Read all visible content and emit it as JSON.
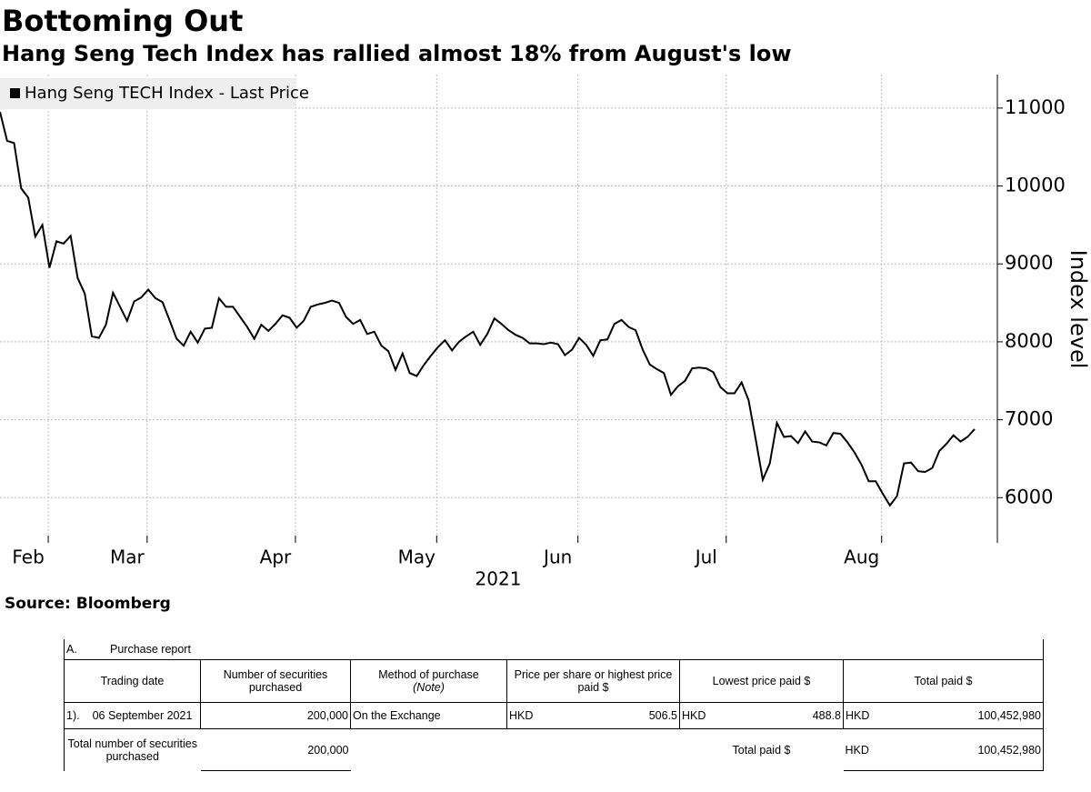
{
  "chart_data": {
    "type": "line",
    "title": "Bottoming Out",
    "subtitle": "Hang Seng Tech Index has rallied almost 18% from August's low",
    "x_label": "2021",
    "y_label": "Index level",
    "source": "Source: Bloomberg",
    "categories": [
      null,
      null,
      null,
      null,
      "Feb",
      null,
      null,
      null,
      null,
      null,
      null,
      null,
      null,
      null,
      null,
      null,
      null,
      null,
      "Mar",
      null,
      null,
      null,
      null,
      null,
      null,
      null,
      null,
      null,
      null,
      null,
      null,
      null,
      null,
      null,
      null,
      null,
      null,
      null,
      null,
      "Apr",
      null,
      null,
      null,
      null,
      null,
      null,
      null,
      null,
      null,
      null,
      null,
      null,
      null,
      null,
      null,
      null,
      null,
      null,
      null,
      "May",
      null,
      null,
      null,
      null,
      null,
      null,
      null,
      null,
      null,
      null,
      null,
      null,
      null,
      null,
      null,
      null,
      null,
      null,
      null,
      "Jun",
      null,
      null,
      null,
      null,
      null,
      null,
      null,
      null,
      null,
      null,
      null,
      null,
      null,
      null,
      null,
      null,
      null,
      null,
      null,
      null,
      "Jul",
      null,
      null,
      null,
      null,
      null,
      null,
      null,
      null,
      null,
      null,
      null,
      null,
      null,
      null,
      null,
      null,
      null,
      null,
      null,
      null,
      null,
      "Aug",
      null,
      null,
      null,
      null,
      null,
      null,
      null,
      null,
      null,
      null,
      null,
      null,
      null,
      null,
      null,
      null
    ],
    "series": [
      {
        "name": "Hang Seng TECH Index - Last Price",
        "color": "#000000",
        "values": [
          10950,
          10580,
          10550,
          9970,
          9850,
          9350,
          9500,
          8950,
          9290,
          9260,
          9360,
          8820,
          8620,
          8070,
          8050,
          8220,
          8630,
          8450,
          8270,
          8520,
          8570,
          8670,
          8560,
          8510,
          8280,
          8040,
          7950,
          8130,
          7990,
          8170,
          8180,
          8560,
          8450,
          8450,
          8320,
          8190,
          8040,
          8220,
          8140,
          8230,
          8340,
          8310,
          8180,
          8270,
          8450,
          8480,
          8500,
          8530,
          8500,
          8320,
          8230,
          8280,
          8100,
          8130,
          7950,
          7880,
          7640,
          7850,
          7600,
          7560,
          7700,
          7820,
          7930,
          8020,
          7890,
          8000,
          8070,
          8130,
          7960,
          8100,
          8300,
          8230,
          8150,
          8090,
          8050,
          7980,
          7980,
          7970,
          7990,
          7970,
          7830,
          7900,
          8050,
          7960,
          7820,
          8020,
          8030,
          8230,
          8280,
          8190,
          8150,
          7900,
          7710,
          7650,
          7600,
          7320,
          7430,
          7500,
          7660,
          7670,
          7660,
          7610,
          7420,
          7340,
          7340,
          7480,
          7250,
          6750,
          6230,
          6440,
          6960,
          6780,
          6790,
          6700,
          6850,
          6720,
          6710,
          6670,
          6830,
          6820,
          6710,
          6580,
          6420,
          6210,
          6210,
          6050,
          5900,
          6020,
          6440,
          6450,
          6340,
          6330,
          6380,
          6600,
          6690,
          6800,
          6720,
          6780,
          6880
        ]
      }
    ],
    "ylim": [
      5420,
      11430
    ],
    "yticks": [
      6000,
      7000,
      8000,
      9000,
      10000,
      11000
    ],
    "grid": true,
    "legend": "upper left"
  },
  "table": {
    "section_label": "A.",
    "section_title": "Purchase report",
    "headers": [
      "Trading date",
      "Number of securities purchased",
      "Method of purchase",
      "Price per share or highest price paid $",
      "Lowest price paid $",
      "Total paid $"
    ],
    "header_note": "(Note)",
    "row": {
      "number": "1).",
      "date": "06 September 2021",
      "quantity": "200,000",
      "method": "On the Exchange",
      "price_currency": "HKD",
      "price": "506.5",
      "lowest_currency": "HKD",
      "lowest": "488.8",
      "total_currency": "HKD",
      "total": "100,452,980"
    },
    "total_row": {
      "label": "Total number of securities purchased",
      "quantity": "200,000",
      "total_label": "Total paid $",
      "total_currency": "HKD",
      "total": "100,452,980"
    }
  }
}
